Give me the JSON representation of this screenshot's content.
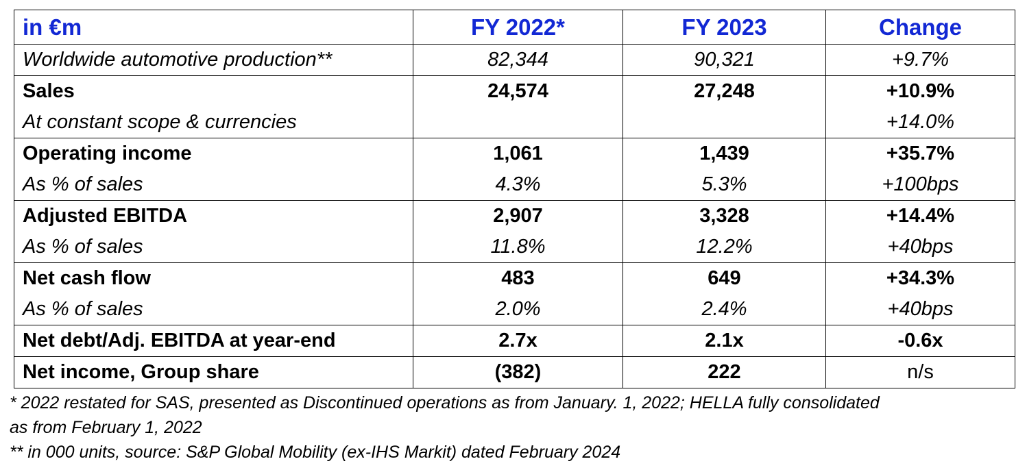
{
  "table": {
    "headers": {
      "label": "in €m",
      "fy2022": "FY 2022*",
      "fy2023": "FY 2023",
      "change": "Change"
    },
    "rows": [
      {
        "label": "Worldwide automotive production**",
        "fy2022": "82,344",
        "fy2023": "90,321",
        "change": "+9.7%"
      },
      {
        "label": "Sales",
        "fy2022": "24,574",
        "fy2023": "27,248",
        "change": "+10.9%"
      },
      {
        "label": "At constant scope & currencies",
        "fy2022": "",
        "fy2023": "",
        "change": "+14.0%"
      },
      {
        "label": "Operating income",
        "fy2022": "1,061",
        "fy2023": "1,439",
        "change": "+35.7%"
      },
      {
        "label": "As % of sales",
        "fy2022": "4.3%",
        "fy2023": "5.3%",
        "change": "+100bps"
      },
      {
        "label": "Adjusted EBITDA",
        "fy2022": "2,907",
        "fy2023": "3,328",
        "change": "+14.4%"
      },
      {
        "label": "As % of sales",
        "fy2022": "11.8%",
        "fy2023": "12.2%",
        "change": "+40bps"
      },
      {
        "label": "Net cash flow",
        "fy2022": "483",
        "fy2023": "649",
        "change": "+34.3%"
      },
      {
        "label": "As % of sales",
        "fy2022": "2.0%",
        "fy2023": "2.4%",
        "change": "+40bps"
      },
      {
        "label": "Net debt/Adj. EBITDA at year-end",
        "fy2022": "2.7x",
        "fy2023": "2.1x",
        "change": "-0.6x"
      },
      {
        "label": "Net income, Group share",
        "fy2022": "(382)",
        "fy2023": "222",
        "change": "n/s"
      }
    ]
  },
  "footnotes": {
    "note1_line1": "* 2022 restated for SAS, presented as Discontinued operations as from January. 1, 2022; HELLA fully consolidated",
    "note1_line2": "as from February 1, 2022",
    "note2": "** in 000 units, source: S&P Global Mobility (ex-IHS Markit) dated February 2024"
  },
  "colors": {
    "header_text": "#1228d4",
    "text": "#000000",
    "border": "#000000"
  }
}
